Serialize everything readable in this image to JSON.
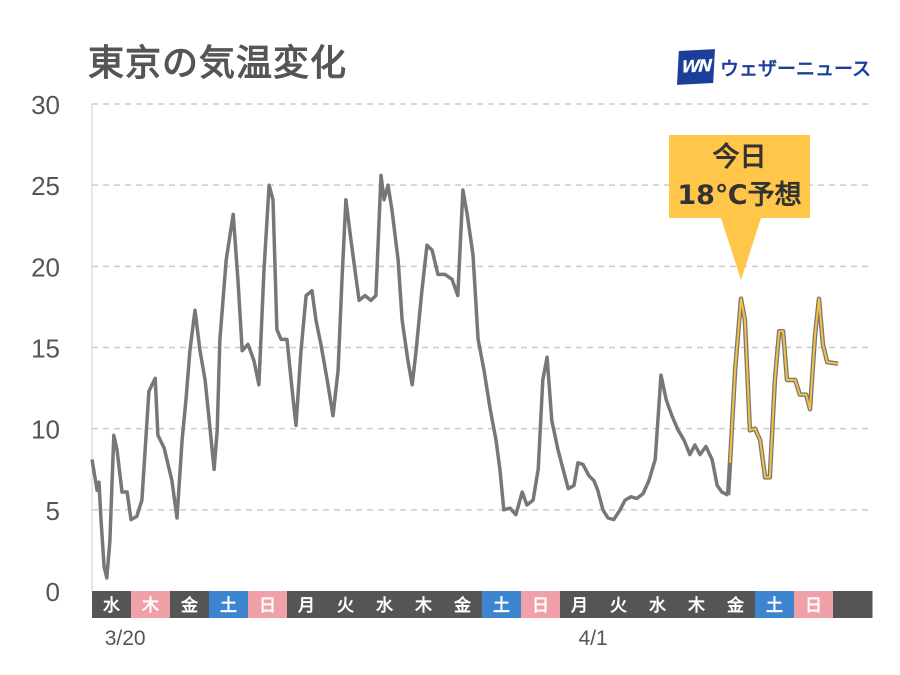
{
  "title": "東京の気温変化",
  "logo": {
    "mark": "WN",
    "text": "ウェザーニュース"
  },
  "callout": {
    "line1": "今日",
    "line2": "18℃予想"
  },
  "colors": {
    "line": "#777777",
    "forecast": "#f5c043",
    "weekday": "#555555",
    "saturday": "#3d86cf",
    "holiday": "#f0a1a8"
  },
  "chart_data": {
    "type": "line",
    "title": "東京の気温変化",
    "xlabel": "",
    "ylabel": "",
    "ylim": [
      0,
      30
    ],
    "yticks": [
      0,
      5,
      10,
      15,
      20,
      25,
      30
    ],
    "grid": true,
    "x_unit": "days since 3/20 00:00",
    "day_labels": [
      {
        "label": "水",
        "type": "weekday"
      },
      {
        "label": "木",
        "type": "holiday"
      },
      {
        "label": "金",
        "type": "weekday"
      },
      {
        "label": "土",
        "type": "saturday"
      },
      {
        "label": "日",
        "type": "holiday"
      },
      {
        "label": "月",
        "type": "weekday"
      },
      {
        "label": "火",
        "type": "weekday"
      },
      {
        "label": "水",
        "type": "weekday"
      },
      {
        "label": "木",
        "type": "weekday"
      },
      {
        "label": "金",
        "type": "weekday"
      },
      {
        "label": "土",
        "type": "saturday"
      },
      {
        "label": "日",
        "type": "holiday"
      },
      {
        "label": "月",
        "type": "weekday"
      },
      {
        "label": "火",
        "type": "weekday"
      },
      {
        "label": "水",
        "type": "weekday"
      },
      {
        "label": "木",
        "type": "weekday"
      },
      {
        "label": "金",
        "type": "weekday"
      },
      {
        "label": "土",
        "type": "saturday"
      },
      {
        "label": "日",
        "type": "holiday"
      },
      {
        "label": "",
        "type": "weekday"
      }
    ],
    "date_labels": [
      {
        "day": 0,
        "label": "3/20"
      },
      {
        "day": 12,
        "label": "4/1"
      }
    ],
    "series": [
      {
        "name": "observed",
        "points": [
          [
            0,
            8.1
          ],
          [
            0.13,
            6.2
          ],
          [
            0.18,
            6.7
          ],
          [
            0.23,
            4.4
          ],
          [
            0.31,
            1.5
          ],
          [
            0.38,
            0.8
          ],
          [
            0.46,
            3.1
          ],
          [
            0.56,
            9.6
          ],
          [
            0.64,
            8.7
          ],
          [
            0.77,
            6.1
          ],
          [
            0.9,
            6.1
          ],
          [
            1.0,
            4.4
          ],
          [
            1.15,
            4.6
          ],
          [
            1.28,
            5.6
          ],
          [
            1.46,
            12.3
          ],
          [
            1.62,
            13.1
          ],
          [
            1.69,
            9.6
          ],
          [
            1.85,
            8.8
          ],
          [
            2.05,
            6.8
          ],
          [
            2.18,
            4.5
          ],
          [
            2.31,
            9.3
          ],
          [
            2.41,
            11.8
          ],
          [
            2.51,
            14.8
          ],
          [
            2.64,
            17.3
          ],
          [
            2.77,
            14.8
          ],
          [
            2.9,
            13.0
          ],
          [
            3.03,
            9.9
          ],
          [
            3.13,
            7.5
          ],
          [
            3.21,
            9.9
          ],
          [
            3.28,
            15.5
          ],
          [
            3.44,
            20.4
          ],
          [
            3.62,
            23.2
          ],
          [
            3.74,
            19.2
          ],
          [
            3.85,
            14.8
          ],
          [
            4.0,
            15.2
          ],
          [
            4.15,
            14.2
          ],
          [
            4.28,
            12.7
          ],
          [
            4.41,
            19.8
          ],
          [
            4.54,
            25.0
          ],
          [
            4.64,
            24.1
          ],
          [
            4.74,
            16.1
          ],
          [
            4.85,
            15.5
          ],
          [
            5.0,
            15.5
          ],
          [
            5.13,
            12.4
          ],
          [
            5.23,
            10.2
          ],
          [
            5.36,
            14.8
          ],
          [
            5.49,
            18.2
          ],
          [
            5.64,
            18.5
          ],
          [
            5.74,
            16.7
          ],
          [
            5.87,
            15.2
          ],
          [
            6.03,
            13.0
          ],
          [
            6.18,
            10.8
          ],
          [
            6.31,
            13.6
          ],
          [
            6.41,
            19.2
          ],
          [
            6.51,
            24.1
          ],
          [
            6.64,
            21.6
          ],
          [
            6.74,
            19.8
          ],
          [
            6.85,
            17.9
          ],
          [
            7.0,
            18.2
          ],
          [
            7.15,
            17.9
          ],
          [
            7.28,
            18.2
          ],
          [
            7.41,
            25.6
          ],
          [
            7.49,
            24.1
          ],
          [
            7.59,
            25.0
          ],
          [
            7.69,
            23.5
          ],
          [
            7.85,
            20.4
          ],
          [
            7.95,
            16.7
          ],
          [
            8.1,
            14.2
          ],
          [
            8.21,
            12.7
          ],
          [
            8.31,
            14.8
          ],
          [
            8.46,
            18.5
          ],
          [
            8.59,
            21.3
          ],
          [
            8.72,
            21.0
          ],
          [
            8.87,
            19.5
          ],
          [
            9.05,
            19.5
          ],
          [
            9.23,
            19.2
          ],
          [
            9.38,
            18.2
          ],
          [
            9.51,
            24.7
          ],
          [
            9.62,
            23.2
          ],
          [
            9.77,
            20.7
          ],
          [
            9.9,
            15.5
          ],
          [
            10.05,
            13.6
          ],
          [
            10.21,
            11.2
          ],
          [
            10.36,
            9.3
          ],
          [
            10.46,
            7.5
          ],
          [
            10.56,
            5.0
          ],
          [
            10.72,
            5.1
          ],
          [
            10.87,
            4.7
          ],
          [
            11.03,
            6.1
          ],
          [
            11.15,
            5.3
          ],
          [
            11.31,
            5.6
          ],
          [
            11.44,
            7.5
          ],
          [
            11.56,
            13.0
          ],
          [
            11.67,
            14.4
          ],
          [
            11.79,
            10.5
          ],
          [
            11.95,
            8.7
          ],
          [
            12.08,
            7.5
          ],
          [
            12.21,
            6.3
          ],
          [
            12.36,
            6.5
          ],
          [
            12.46,
            7.9
          ],
          [
            12.59,
            7.8
          ],
          [
            12.74,
            7.1
          ],
          [
            12.87,
            6.8
          ],
          [
            12.97,
            6.2
          ],
          [
            13.1,
            5.0
          ],
          [
            13.23,
            4.5
          ],
          [
            13.38,
            4.4
          ],
          [
            13.54,
            5.0
          ],
          [
            13.67,
            5.6
          ],
          [
            13.82,
            5.8
          ],
          [
            13.97,
            5.7
          ],
          [
            14.13,
            6.0
          ],
          [
            14.28,
            6.8
          ],
          [
            14.44,
            8.1
          ],
          [
            14.59,
            13.3
          ],
          [
            14.72,
            11.8
          ],
          [
            14.87,
            10.8
          ],
          [
            15.03,
            9.9
          ],
          [
            15.18,
            9.3
          ],
          [
            15.33,
            8.4
          ],
          [
            15.46,
            9.0
          ],
          [
            15.59,
            8.4
          ],
          [
            15.74,
            8.9
          ],
          [
            15.9,
            8.1
          ],
          [
            16.03,
            6.5
          ],
          [
            16.15,
            6.1
          ],
          [
            16.31,
            5.9
          ]
        ]
      },
      {
        "name": "forecast",
        "points": [
          [
            16.36,
            7.9
          ],
          [
            16.49,
            13.6
          ],
          [
            16.64,
            18.0
          ],
          [
            16.74,
            16.7
          ],
          [
            16.87,
            9.9
          ],
          [
            17.0,
            10.0
          ],
          [
            17.13,
            9.3
          ],
          [
            17.26,
            7.0
          ],
          [
            17.38,
            7.0
          ],
          [
            17.51,
            13.0
          ],
          [
            17.62,
            16.0
          ],
          [
            17.72,
            16.0
          ],
          [
            17.82,
            13.0
          ],
          [
            18.03,
            13.0
          ],
          [
            18.15,
            12.1
          ],
          [
            18.31,
            12.1
          ],
          [
            18.41,
            11.2
          ],
          [
            18.54,
            15.8
          ],
          [
            18.64,
            18.0
          ],
          [
            18.74,
            15.2
          ],
          [
            18.85,
            14.1
          ],
          [
            19.13,
            14.0
          ]
        ]
      }
    ]
  }
}
